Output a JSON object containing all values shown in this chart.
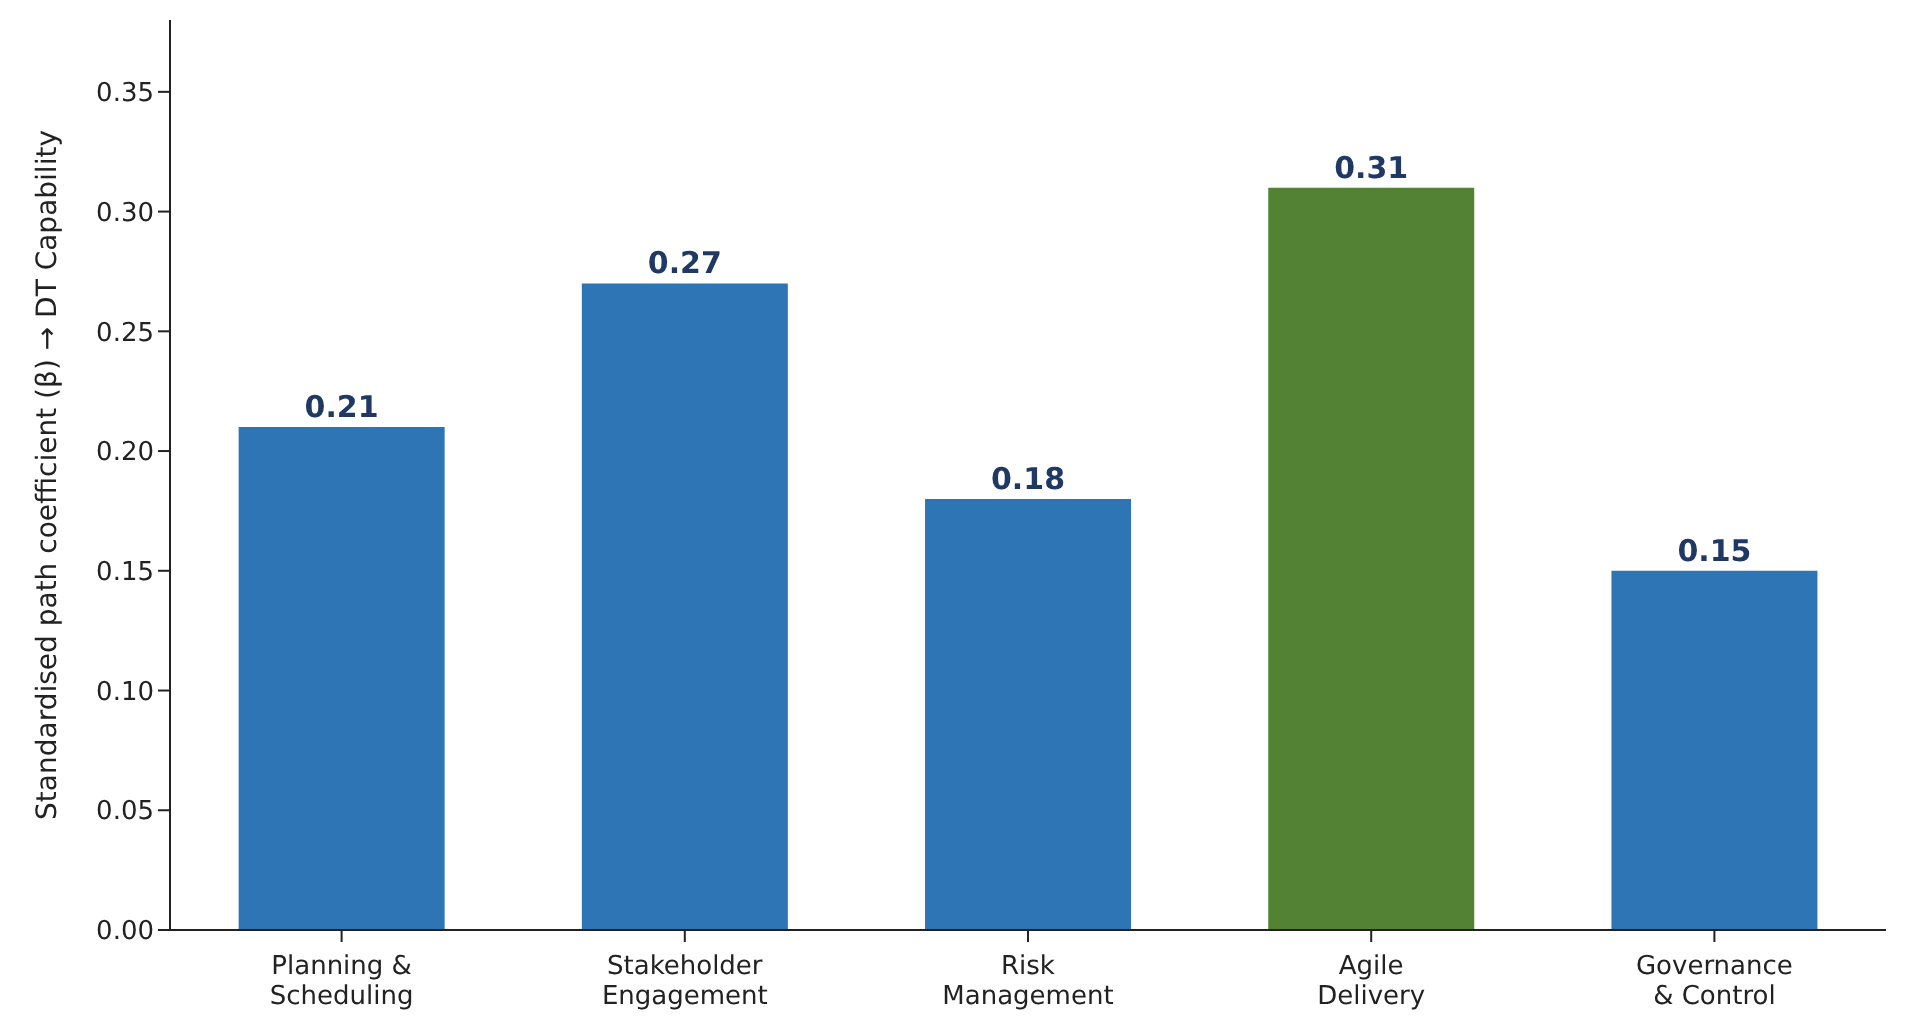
{
  "chart_data": {
    "type": "bar",
    "ylabel": "Standardised path coefficient (β) → DT Capability",
    "categories": [
      "Planning &\nScheduling",
      "Stakeholder\nEngagement",
      "Risk\nManagement",
      "Agile\nDelivery",
      "Governance\n& Control"
    ],
    "values": [
      0.21,
      0.27,
      0.18,
      0.31,
      0.15
    ],
    "colors": [
      "#2e75b6",
      "#2e75b6",
      "#2e75b6",
      "#548235",
      "#2e75b6"
    ],
    "ylim": [
      0,
      0.38
    ],
    "yticks": [
      {
        "value": 0,
        "label": "0.00"
      },
      0.05,
      {
        "value": 0.1,
        "label": "0.10"
      },
      0.15,
      {
        "value": 0.2,
        "label": "0.20"
      },
      0.25,
      {
        "value": 0.3,
        "label": "0.30"
      },
      0.35
    ],
    "data_labels": true,
    "grid": false,
    "legend": false
  }
}
